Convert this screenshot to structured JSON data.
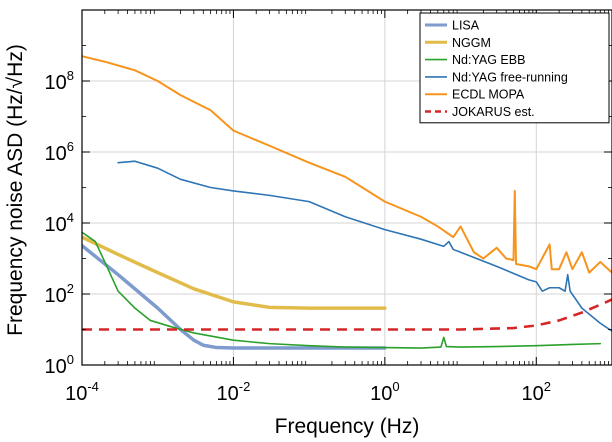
{
  "chart_data": {
    "type": "line",
    "xlabel": "Frequency (Hz)",
    "ylabel": "Frequency noise ASD (Hz/√Hz)",
    "x_scale": "log",
    "y_scale": "log",
    "xlim": [
      0.0001,
      1000
    ],
    "ylim": [
      1,
      10000000000
    ],
    "x_ticks": [
      {
        "value": 0.0001,
        "base": "10",
        "exp": "-4"
      },
      {
        "value": 0.01,
        "base": "10",
        "exp": "-2"
      },
      {
        "value": 1,
        "base": "10",
        "exp": "0"
      },
      {
        "value": 100,
        "base": "10",
        "exp": "2"
      }
    ],
    "y_ticks": [
      {
        "value": 1,
        "base": "10",
        "exp": "0"
      },
      {
        "value": 100,
        "base": "10",
        "exp": "2"
      },
      {
        "value": 10000,
        "base": "10",
        "exp": "4"
      },
      {
        "value": 1000000,
        "base": "10",
        "exp": "6"
      },
      {
        "value": 100000000,
        "base": "10",
        "exp": "8"
      }
    ],
    "grid": true,
    "legend_position": "top-right",
    "series": [
      {
        "name": "LISA",
        "color": "#7d9bcd",
        "style": "solid",
        "points": [
          [
            0.0001,
            2300
          ],
          [
            0.0003,
            350
          ],
          [
            0.001,
            40
          ],
          [
            0.002,
            10
          ],
          [
            0.003,
            5
          ],
          [
            0.004,
            3.6
          ],
          [
            0.006,
            3.1
          ],
          [
            0.01,
            3.0
          ],
          [
            1,
            3.0
          ]
        ],
        "scale": 100
      },
      {
        "name": "NGGM",
        "color": "#e1bc4a",
        "style": "solid",
        "points": [
          [
            0.0001,
            4000
          ],
          [
            0.0003,
            1300
          ],
          [
            0.001,
            400
          ],
          [
            0.003,
            140
          ],
          [
            0.01,
            60
          ],
          [
            0.03,
            42
          ],
          [
            0.1,
            40
          ],
          [
            1,
            40
          ]
        ]
      },
      {
        "name": "Nd:YAG EBB",
        "color": "#2ca02c",
        "style": "solid",
        "points": [
          [
            0.0001,
            5500
          ],
          [
            0.00015,
            3000
          ],
          [
            0.0002,
            800
          ],
          [
            0.0003,
            120
          ],
          [
            0.0005,
            40
          ],
          [
            0.0008,
            18
          ],
          [
            0.0015,
            12
          ],
          [
            0.003,
            8
          ],
          [
            0.01,
            5
          ],
          [
            0.03,
            4
          ],
          [
            0.1,
            3.5
          ],
          [
            0.3,
            3.2
          ],
          [
            1,
            3.1
          ],
          [
            3,
            3
          ],
          [
            5.5,
            3.2
          ],
          [
            6,
            6
          ],
          [
            6.5,
            3.3
          ],
          [
            10,
            3.2
          ],
          [
            30,
            3.3
          ],
          [
            100,
            3.5
          ],
          [
            300,
            3.8
          ],
          [
            700,
            4
          ]
        ]
      },
      {
        "name": "Nd:YAG free-running",
        "color": "#2e75b6",
        "style": "solid",
        "points": [
          [
            0.0003,
            500000
          ],
          [
            0.0005,
            550000
          ],
          [
            0.001,
            350000
          ],
          [
            0.002,
            170000
          ],
          [
            0.005,
            100000
          ],
          [
            0.01,
            80000
          ],
          [
            0.03,
            60000
          ],
          [
            0.1,
            40000
          ],
          [
            0.3,
            15000
          ],
          [
            1,
            6500
          ],
          [
            3,
            3500
          ],
          [
            6,
            2200
          ],
          [
            7,
            3000
          ],
          [
            8,
            1800
          ],
          [
            10,
            1500
          ],
          [
            30,
            600
          ],
          [
            80,
            250
          ],
          [
            100,
            220
          ],
          [
            120,
            120
          ],
          [
            150,
            150
          ],
          [
            200,
            150
          ],
          [
            240,
            120
          ],
          [
            260,
            350
          ],
          [
            280,
            120
          ],
          [
            400,
            40
          ],
          [
            700,
            15
          ],
          [
            1000,
            9
          ]
        ]
      },
      {
        "name": "ECDL MOPA",
        "color": "#f7941d",
        "style": "solid",
        "points": [
          [
            0.0001,
            500000000
          ],
          [
            0.0002,
            350000000
          ],
          [
            0.0005,
            200000000
          ],
          [
            0.001,
            100000000
          ],
          [
            0.002,
            40000000
          ],
          [
            0.005,
            15000000
          ],
          [
            0.01,
            4000000
          ],
          [
            0.03,
            1500000
          ],
          [
            0.1,
            500000
          ],
          [
            0.3,
            200000
          ],
          [
            1,
            40000
          ],
          [
            3,
            15000
          ],
          [
            5,
            8000
          ],
          [
            8,
            4000
          ],
          [
            10,
            8000
          ],
          [
            15,
            1500
          ],
          [
            20,
            1000
          ],
          [
            30,
            2000
          ],
          [
            40,
            1000
          ],
          [
            50,
            900
          ],
          [
            52,
            80000
          ],
          [
            54,
            700
          ],
          [
            80,
            600
          ],
          [
            100,
            500
          ],
          [
            150,
            2500
          ],
          [
            160,
            500
          ],
          [
            200,
            500
          ],
          [
            250,
            1500
          ],
          [
            300,
            500
          ],
          [
            400,
            1500
          ],
          [
            500,
            400
          ],
          [
            700,
            800
          ],
          [
            1000,
            400
          ]
        ]
      },
      {
        "name": "JOKARUS est.",
        "color": "#d62728",
        "style": "dashed",
        "points": [
          [
            0.0001,
            10
          ],
          [
            1,
            10
          ],
          [
            10,
            10
          ],
          [
            50,
            11
          ],
          [
            100,
            13
          ],
          [
            200,
            18
          ],
          [
            400,
            30
          ],
          [
            700,
            50
          ],
          [
            1000,
            70
          ]
        ]
      }
    ]
  }
}
